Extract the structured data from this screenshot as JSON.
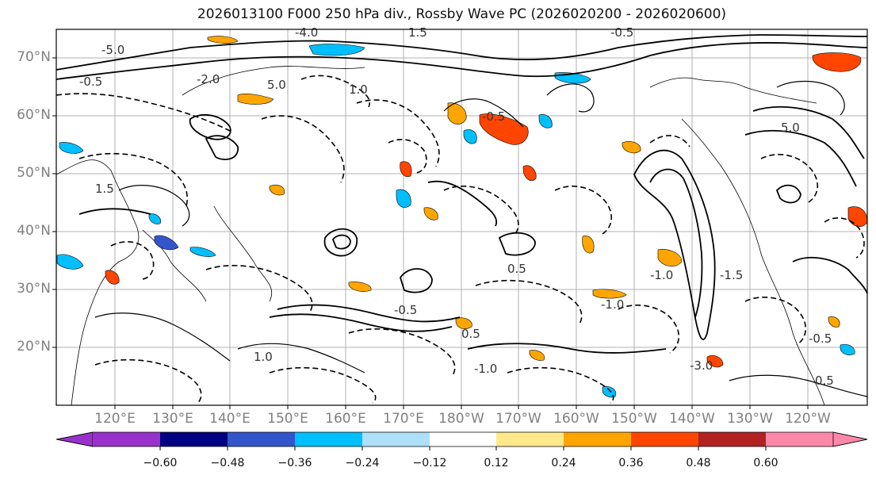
{
  "title": "2026013100 F000 250 hPa div., Rossby Wave PC (2026020200 - 2026020600)",
  "map": {
    "latitude_labels": [
      "70°N",
      "60°N",
      "50°N",
      "40°N",
      "30°N",
      "20°N"
    ],
    "longitude_labels": [
      "120°E",
      "130°E",
      "140°E",
      "150°E",
      "160°E",
      "170°E",
      "180°W",
      "170°W",
      "160°W",
      "150°W",
      "140°W",
      "130°W",
      "120°W"
    ],
    "contour_labels": [
      "-5.0",
      "-0.5",
      "-4.0",
      "1.5",
      "-0.5",
      "-2.0",
      "1.0",
      "-0.5",
      "5.0",
      "0.5",
      "-1.0",
      "0.5",
      "1.5",
      "-0.5",
      "-1.0",
      "-1.5",
      "-3.0",
      "1.0",
      "5.0",
      "-0.5",
      "-1.0",
      "0.5"
    ],
    "colors": {
      "purple": "#9932cc",
      "navy": "#000080",
      "royal": "#3355cc",
      "sky": "#00bfff",
      "light_blue": "#afe0fa",
      "white": "#ffffff",
      "light_yellow": "#ffe98a",
      "orange": "#ffa500",
      "red_orange": "#ff4500",
      "brick": "#b22222",
      "pink": "#ff88aa"
    }
  },
  "colorbar": {
    "ticks": [
      "−0.60",
      "−0.48",
      "−0.36",
      "−0.24",
      "−0.12",
      "0.12",
      "0.24",
      "0.36",
      "0.48",
      "0.60"
    ],
    "colors": [
      "#9932cc",
      "#000080",
      "#3355cc",
      "#00bfff",
      "#afe0fa",
      "#ffffff",
      "#ffe98a",
      "#ffa500",
      "#ff4500",
      "#b22222",
      "#ff88aa"
    ]
  }
}
